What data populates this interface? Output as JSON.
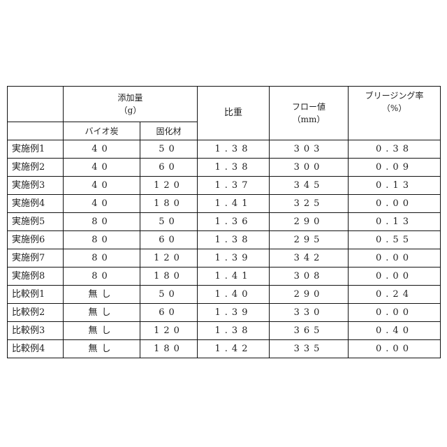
{
  "header": {
    "additive": "添加量",
    "additive_unit": "（g）",
    "biochar": "バイオ炭",
    "solidifier": "固化材",
    "specific_gravity": "比重",
    "flow": "フロー値",
    "flow_unit": "（mm）",
    "bleeding": "ブリージング率",
    "bleeding_unit": "（%）"
  },
  "rows": [
    {
      "label": "実施例1",
      "biochar": "40",
      "solidifier": "50",
      "gravity": "1.38",
      "flow": "303",
      "bleeding": "0.38"
    },
    {
      "label": "実施例2",
      "biochar": "40",
      "solidifier": "60",
      "gravity": "1.38",
      "flow": "300",
      "bleeding": "0.09"
    },
    {
      "label": "実施例3",
      "biochar": "40",
      "solidifier": "120",
      "gravity": "1.37",
      "flow": "345",
      "bleeding": "0.13"
    },
    {
      "label": "実施例4",
      "biochar": "40",
      "solidifier": "180",
      "gravity": "1.41",
      "flow": "325",
      "bleeding": "0.00"
    },
    {
      "label": "実施例5",
      "biochar": "80",
      "solidifier": "50",
      "gravity": "1.36",
      "flow": "290",
      "bleeding": "0.13"
    },
    {
      "label": "実施例6",
      "biochar": "80",
      "solidifier": "60",
      "gravity": "1.38",
      "flow": "295",
      "bleeding": "0.55"
    },
    {
      "label": "実施例7",
      "biochar": "80",
      "solidifier": "120",
      "gravity": "1.39",
      "flow": "342",
      "bleeding": "0.00"
    },
    {
      "label": "実施例8",
      "biochar": "80",
      "solidifier": "180",
      "gravity": "1.41",
      "flow": "308",
      "bleeding": "0.00"
    },
    {
      "label": "比較例1",
      "biochar": "無し",
      "solidifier": "50",
      "gravity": "1.40",
      "flow": "290",
      "bleeding": "0.24"
    },
    {
      "label": "比較例2",
      "biochar": "無し",
      "solidifier": "60",
      "gravity": "1.39",
      "flow": "330",
      "bleeding": "0.00"
    },
    {
      "label": "比較例3",
      "biochar": "無し",
      "solidifier": "120",
      "gravity": "1.38",
      "flow": "365",
      "bleeding": "0.40"
    },
    {
      "label": "比較例4",
      "biochar": "無し",
      "solidifier": "180",
      "gravity": "1.42",
      "flow": "335",
      "bleeding": "0.00"
    }
  ]
}
